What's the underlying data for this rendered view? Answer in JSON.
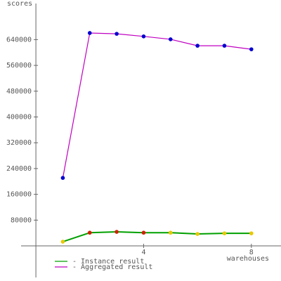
{
  "chart_data": {
    "type": "line",
    "y_label": "scores",
    "x_label": "warehouses",
    "x": [
      1,
      2,
      3,
      4,
      5,
      6,
      7,
      8
    ],
    "series": [
      {
        "name": "- Instance result",
        "color": "#00a000",
        "values": [
          13000,
          41000,
          43600,
          41000,
          41000,
          37000,
          39000,
          39000
        ],
        "point_colors": [
          "#e8c800",
          "#d02000",
          "#d02000",
          "#d02000",
          "#e8c800",
          "#e8c800",
          "#e8c800",
          "#e8c800"
        ]
      },
      {
        "name": "- Aggregated result",
        "color": "#c000c0",
        "values": [
          211000,
          660500,
          658000,
          650000,
          641000,
          621000,
          621000,
          610000
        ],
        "point_colors": [
          "#0000d0",
          "#0000d0",
          "#0000d0",
          "#0000d0",
          "#0000d0",
          "#0000d0",
          "#0000d0",
          "#0000d0"
        ]
      }
    ],
    "xlim": [
      -0.55,
      9.1
    ],
    "xticks": [
      4,
      8
    ],
    "ylim": [
      -98000,
      752000
    ],
    "yticks": [
      80000,
      160000,
      240000,
      320000,
      400000,
      480000,
      560000,
      640000
    ],
    "grid": false
  }
}
